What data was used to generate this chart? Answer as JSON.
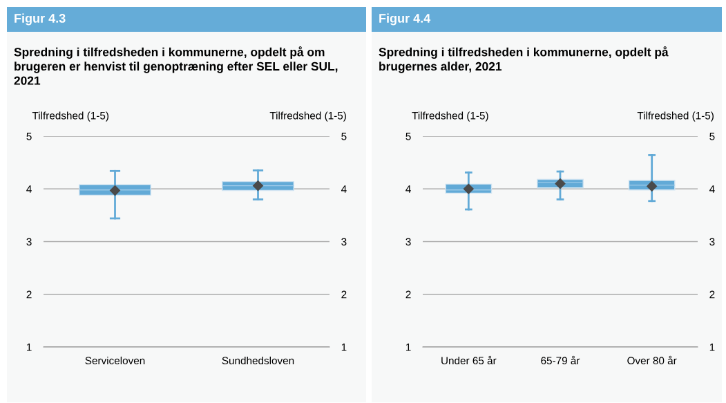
{
  "chart_data": [
    {
      "type": "box",
      "title": "Figur 4.3",
      "subtitle": "Spredning i tilfredsheden i kommunerne, opdelt på om brugeren er henvist til genoptræning efter SEL eller SUL, 2021",
      "ylabel": "Tilfredshed (1-5)",
      "y2label": "Tilfredshed (1-5)",
      "categories": [
        "Serviceloven",
        "Sundhedsloven"
      ],
      "ylim": [
        1,
        5
      ],
      "yticks": [
        1,
        2,
        3,
        4,
        5
      ],
      "y2lim": [
        1,
        5
      ],
      "y2ticks": [
        1,
        2,
        3,
        4,
        5
      ],
      "grid": "y",
      "marker": "diamond",
      "series": [
        {
          "color": "#62aad7",
          "boxes": [
            {
              "low": 3.44,
              "q1": 3.88,
              "median": 3.98,
              "q3": 4.08,
              "high": 4.34,
              "mean": 3.97
            },
            {
              "low": 3.8,
              "q1": 3.97,
              "median": 4.06,
              "q3": 4.14,
              "high": 4.35,
              "mean": 4.06
            }
          ]
        }
      ]
    },
    {
      "type": "box",
      "title": "Figur 4.4",
      "subtitle": "Spredning i tilfredsheden i kommunerne, opdelt på brugernes alder, 2021",
      "ylabel": "Tilfredshed (1-5)",
      "y2label": "Tilfredshed (1-5)",
      "categories": [
        "Under 65 år",
        "65-79 år",
        "Over 80 år"
      ],
      "ylim": [
        1,
        5
      ],
      "yticks": [
        1,
        2,
        3,
        4,
        5
      ],
      "y2lim": [
        1,
        5
      ],
      "y2ticks": [
        1,
        2,
        3,
        4,
        5
      ],
      "grid": "y",
      "marker": "diamond",
      "series": [
        {
          "color": "#62aad7",
          "boxes": [
            {
              "low": 3.61,
              "q1": 3.92,
              "median": 3.98,
              "q3": 4.09,
              "high": 4.31,
              "mean": 4.0
            },
            {
              "low": 3.8,
              "q1": 4.02,
              "median": 4.12,
              "q3": 4.18,
              "high": 4.33,
              "mean": 4.1
            },
            {
              "low": 3.77,
              "q1": 3.98,
              "median": 4.07,
              "q3": 4.16,
              "high": 4.64,
              "mean": 4.05
            }
          ]
        }
      ]
    }
  ]
}
